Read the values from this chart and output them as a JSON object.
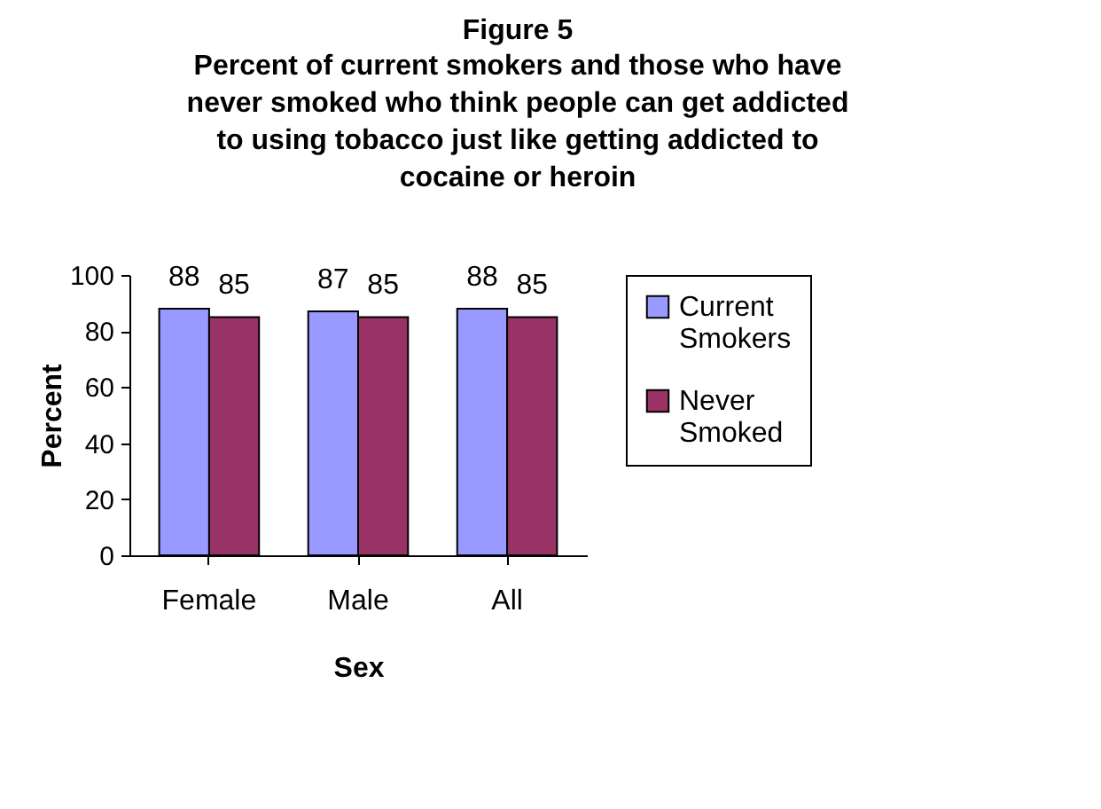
{
  "chart_data": {
    "type": "bar",
    "title": "Figure 5",
    "subtitle": "Percent of current smokers and those who have never smoked who think people can get addicted to using tobacco just like getting addicted to cocaine or heroin",
    "xlabel": "Sex",
    "ylabel": "Percent",
    "categories": [
      "Female",
      "Male",
      "All"
    ],
    "series": [
      {
        "name": "Current Smokers",
        "color": "#9999ff",
        "values": [
          88,
          87,
          88
        ]
      },
      {
        "name": "Never Smoked",
        "color": "#993366",
        "values": [
          85,
          85,
          85
        ]
      }
    ],
    "ylim": [
      0,
      100
    ],
    "yticks": [
      0,
      20,
      40,
      60,
      80,
      100
    ],
    "grid": false,
    "legend": "right",
    "data_labels": true
  }
}
